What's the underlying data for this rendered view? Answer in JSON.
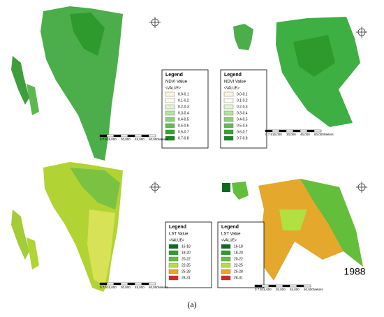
{
  "panels": [
    {
      "legend": {
        "title": "Legend",
        "field": "NDVI Value",
        "subfield": "<VALUE>",
        "classes": [
          "0.0-0.1",
          "0.1-0.2",
          "0.2-0.3",
          "0.3-0.4",
          "0.4-0.5",
          "0.5-0.6",
          "0.6-0.7",
          "0.7-0.8"
        ],
        "colors": [
          "#fff6de",
          "#fbfbe8",
          "#e4f3cf",
          "#b7e39d",
          "#8ad27a",
          "#5bbf4f",
          "#2ea92f",
          "#15891b"
        ]
      },
      "scale": {
        "labels": [
          "0 7.515,000",
          "30,000",
          "45,000",
          "60,000"
        ],
        "unit": "Meters"
      }
    },
    {
      "legend": {
        "title": "Legend",
        "field": "NDVI Value",
        "subfield": "<VALUE>",
        "classes": [
          "0.0-0.1",
          "0.1-0.2",
          "0.2-0.3",
          "0.3-0.4",
          "0.4-0.5",
          "0.5-0.6",
          "0.6-0.7",
          "0.7-0.8"
        ],
        "colors": [
          "#fff6de",
          "#fbfbe8",
          "#e4f3cf",
          "#b7e39d",
          "#8ad27a",
          "#5bbf4f",
          "#2ea92f",
          "#15891b"
        ]
      },
      "scale": {
        "labels": [
          "0 7.515,000",
          "30,000",
          "45,000",
          "60,000"
        ],
        "unit": "Meters"
      }
    },
    {
      "legend": {
        "title": "Legend",
        "field": "LST Value",
        "subfield": "<VALUE>",
        "classes": [
          "16-18",
          "18-20",
          "20-22",
          "22-25",
          "25-28",
          "28-31"
        ],
        "colors": [
          "#0b6b1f",
          "#2f9a2b",
          "#63bf3b",
          "#b2e042",
          "#f0a222",
          "#e02222"
        ]
      },
      "scale": {
        "labels": [
          "0 7.515,000",
          "30,000",
          "45,000",
          "60,000"
        ],
        "unit": "Meters"
      }
    },
    {
      "legend": {
        "title": "Legend",
        "field": "LST Value",
        "subfield": "<VALUE>",
        "classes": [
          "16-18",
          "18-20",
          "20-22",
          "22-25",
          "25-28",
          "28-31"
        ],
        "colors": [
          "#0b6b1f",
          "#2f9a2b",
          "#63bf3b",
          "#b2e042",
          "#f0a222",
          "#e02222"
        ]
      },
      "scale": {
        "labels": [
          "0 7.515,000",
          "30,000",
          "45,000",
          "60,000"
        ],
        "unit": "Meters"
      }
    }
  ],
  "year": "1988",
  "caption": "(a)"
}
